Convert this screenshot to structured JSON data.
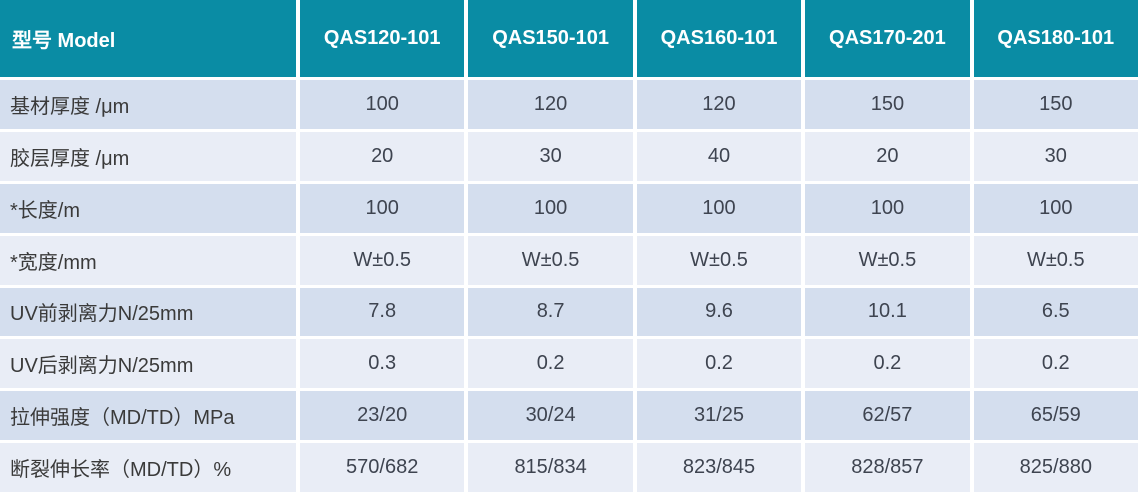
{
  "colors": {
    "header_bg": "#0a8ca4",
    "header_text": "#ffffff",
    "row_dark_bg": "#d4deee",
    "row_light_bg": "#e9edf6",
    "label_text": "#3a3a3a",
    "value_text": "#3e4450",
    "separator": "#ffffff"
  },
  "header": {
    "label": "型号 Model",
    "columns": [
      "QAS120-101",
      "QAS150-101",
      "QAS160-101",
      "QAS170-201",
      "QAS180-101"
    ]
  },
  "rows": [
    {
      "label": "基材厚度  /μm",
      "values": [
        "100",
        "120",
        "120",
        "150",
        "150"
      ]
    },
    {
      "label": "胶层厚度 /μm",
      "values": [
        "20",
        "30",
        "40",
        "20",
        "30"
      ]
    },
    {
      "label": "*长度/m",
      "values": [
        "100",
        "100",
        "100",
        "100",
        "100"
      ]
    },
    {
      "label": "*宽度/mm",
      "values": [
        "W±0.5",
        "W±0.5",
        "W±0.5",
        "W±0.5",
        "W±0.5"
      ]
    },
    {
      "label": "UV前剥离力N/25mm",
      "values": [
        "7.8",
        "8.7",
        "9.6",
        "10.1",
        "6.5"
      ]
    },
    {
      "label": "UV后剥离力N/25mm",
      "values": [
        "0.3",
        "0.2",
        "0.2",
        "0.2",
        "0.2"
      ]
    },
    {
      "label": "拉伸强度（MD/TD）MPa",
      "values": [
        "23/20",
        "30/24",
        "31/25",
        "62/57",
        "65/59"
      ]
    },
    {
      "label": "断裂伸长率（MD/TD）%",
      "values": [
        "570/682",
        "815/834",
        "823/845",
        "828/857",
        "825/880"
      ]
    }
  ]
}
